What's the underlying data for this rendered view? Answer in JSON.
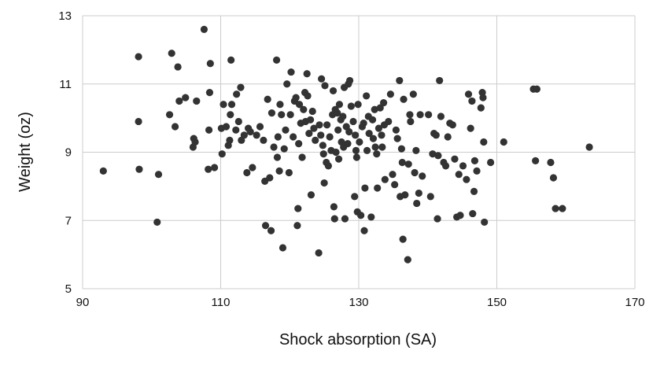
{
  "chart_data": {
    "type": "scatter",
    "xlabel": "Shock absorption (SA)",
    "ylabel": "Weight (oz)",
    "xlim": [
      90,
      170
    ],
    "ylim": [
      5,
      13
    ],
    "x_ticks": [
      90,
      110,
      130,
      150,
      170
    ],
    "y_ticks": [
      5,
      7,
      9,
      11,
      13
    ],
    "grid": true,
    "point_color": "#333333",
    "points": [
      [
        93,
        8.45
      ],
      [
        98.1,
        11.8
      ],
      [
        98.1,
        9.9
      ],
      [
        98.2,
        8.5
      ],
      [
        100.8,
        6.95
      ],
      [
        101,
        8.35
      ],
      [
        102.6,
        10.1
      ],
      [
        102.9,
        11.9
      ],
      [
        103.4,
        9.75
      ],
      [
        103.8,
        11.5
      ],
      [
        104,
        10.5
      ],
      [
        104.9,
        10.6
      ],
      [
        106,
        9.15
      ],
      [
        106.1,
        9.4
      ],
      [
        106.3,
        9.3
      ],
      [
        106.5,
        10.5
      ],
      [
        107.6,
        12.6
      ],
      [
        108.2,
        8.5
      ],
      [
        108.3,
        9.65
      ],
      [
        108.4,
        10.75
      ],
      [
        108.5,
        11.6
      ],
      [
        109.1,
        8.55
      ],
      [
        110.1,
        9.7
      ],
      [
        110.2,
        8.95
      ],
      [
        110.4,
        10.4
      ],
      [
        110.8,
        9.75
      ],
      [
        111.1,
        9.2
      ],
      [
        111.3,
        9.35
      ],
      [
        111.4,
        10.1
      ],
      [
        111.5,
        11.7
      ],
      [
        111.6,
        10.4
      ],
      [
        112.2,
        9.65
      ],
      [
        112.3,
        10.7
      ],
      [
        112.6,
        9.9
      ],
      [
        112.9,
        10.9
      ],
      [
        113,
        9.35
      ],
      [
        113.4,
        9.5
      ],
      [
        113.8,
        8.4
      ],
      [
        114,
        9.7
      ],
      [
        114.3,
        9.6
      ],
      [
        114.6,
        8.55
      ],
      [
        115.2,
        9.5
      ],
      [
        115.7,
        9.75
      ],
      [
        116.2,
        9.35
      ],
      [
        116.4,
        8.15
      ],
      [
        116.5,
        6.85
      ],
      [
        116.8,
        10.55
      ],
      [
        117.1,
        8.25
      ],
      [
        117.3,
        6.7
      ],
      [
        117.4,
        10.15
      ],
      [
        117.7,
        9.15
      ],
      [
        118.1,
        11.7
      ],
      [
        118.2,
        8.85
      ],
      [
        118.3,
        9.45
      ],
      [
        118.5,
        8.45
      ],
      [
        118.6,
        10.4
      ],
      [
        118.8,
        10.1
      ],
      [
        119,
        6.2
      ],
      [
        119.2,
        9.1
      ],
      [
        119.4,
        9.65
      ],
      [
        119.6,
        11
      ],
      [
        119.9,
        8.4
      ],
      [
        120.1,
        10.1
      ],
      [
        120.2,
        11.35
      ],
      [
        120.5,
        9.45
      ],
      [
        120.7,
        10.5
      ],
      [
        120.9,
        10.6
      ],
      [
        121.1,
        6.85
      ],
      [
        121.2,
        7.35
      ],
      [
        121.3,
        9.25
      ],
      [
        121.4,
        10.4
      ],
      [
        121.6,
        9.85
      ],
      [
        121.8,
        8.85
      ],
      [
        122,
        10.25
      ],
      [
        122.2,
        10.75
      ],
      [
        122.3,
        9.9
      ],
      [
        122.5,
        11.3
      ],
      [
        122.6,
        10.65
      ],
      [
        122.8,
        9.55
      ],
      [
        123,
        9.95
      ],
      [
        123.1,
        7.75
      ],
      [
        123.3,
        10.2
      ],
      [
        123.5,
        9.7
      ],
      [
        123.7,
        9.35
      ],
      [
        124.2,
        6.05
      ],
      [
        124.3,
        9.8
      ],
      [
        124.5,
        9.5
      ],
      [
        124.6,
        11.15
      ],
      [
        124.8,
        9.2
      ],
      [
        124.9,
        8.95
      ],
      [
        125,
        8.1
      ],
      [
        125.1,
        10.95
      ],
      [
        125.3,
        8.7
      ],
      [
        125.4,
        9.8
      ],
      [
        125.6,
        8.6
      ],
      [
        125.8,
        9.45
      ],
      [
        126,
        9.05
      ],
      [
        126.2,
        10.1
      ],
      [
        126.3,
        10.8
      ],
      [
        126.4,
        7.4
      ],
      [
        126.5,
        7.05
      ],
      [
        126.6,
        10.25
      ],
      [
        126.7,
        9
      ],
      [
        126.9,
        10.15
      ],
      [
        127,
        9.65
      ],
      [
        127.1,
        8.8
      ],
      [
        127.2,
        10.4
      ],
      [
        127.4,
        9.95
      ],
      [
        127.5,
        9.3
      ],
      [
        127.7,
        10.05
      ],
      [
        127.8,
        9.15
      ],
      [
        127.9,
        10.9
      ],
      [
        128,
        7.05
      ],
      [
        128.2,
        9.75
      ],
      [
        128.4,
        9.25
      ],
      [
        128.5,
        11
      ],
      [
        128.6,
        9.6
      ],
      [
        128.7,
        11.1
      ],
      [
        128.9,
        10.35
      ],
      [
        129.2,
        9.9
      ],
      [
        129.4,
        7.7
      ],
      [
        129.5,
        9.5
      ],
      [
        129.6,
        9.05
      ],
      [
        129.7,
        8.85
      ],
      [
        129.8,
        7.25
      ],
      [
        129.9,
        10.4
      ],
      [
        130.1,
        9.3
      ],
      [
        130.3,
        7.15
      ],
      [
        130.5,
        9.75
      ],
      [
        130.7,
        9.85
      ],
      [
        130.8,
        6.7
      ],
      [
        130.9,
        7.95
      ],
      [
        131.1,
        10.65
      ],
      [
        131.2,
        9.05
      ],
      [
        131.4,
        10.05
      ],
      [
        131.5,
        9.55
      ],
      [
        131.8,
        7.1
      ],
      [
        132,
        9.95
      ],
      [
        132.1,
        9.4
      ],
      [
        132.3,
        10.25
      ],
      [
        132.4,
        9.15
      ],
      [
        132.6,
        8.95
      ],
      [
        132.7,
        7.95
      ],
      [
        132.9,
        9.7
      ],
      [
        133.1,
        10.3
      ],
      [
        133.3,
        9.5
      ],
      [
        133.4,
        9.15
      ],
      [
        133.6,
        10.45
      ],
      [
        133.7,
        9.8
      ],
      [
        133.8,
        8.2
      ],
      [
        134.3,
        9.9
      ],
      [
        134.6,
        10.7
      ],
      [
        134.9,
        8.35
      ],
      [
        135.2,
        8.05
      ],
      [
        135.4,
        9.65
      ],
      [
        135.6,
        9.4
      ],
      [
        135.9,
        11.1
      ],
      [
        136,
        7.7
      ],
      [
        136.2,
        9.1
      ],
      [
        136.3,
        8.7
      ],
      [
        136.4,
        6.45
      ],
      [
        136.5,
        10.55
      ],
      [
        136.7,
        7.75
      ],
      [
        137.1,
        5.85
      ],
      [
        137.2,
        8.65
      ],
      [
        137.4,
        10.1
      ],
      [
        137.5,
        9.9
      ],
      [
        137.9,
        10.7
      ],
      [
        138.1,
        8.4
      ],
      [
        138.3,
        9.05
      ],
      [
        138.4,
        7.5
      ],
      [
        138.7,
        7.8
      ],
      [
        138.9,
        10.1
      ],
      [
        139.2,
        8.3
      ],
      [
        140.1,
        10.1
      ],
      [
        140.4,
        7.7
      ],
      [
        140.7,
        8.95
      ],
      [
        140.9,
        9.55
      ],
      [
        141.2,
        9.5
      ],
      [
        141.4,
        7.05
      ],
      [
        141.5,
        8.9
      ],
      [
        141.7,
        11.1
      ],
      [
        141.9,
        10.05
      ],
      [
        142.3,
        8.7
      ],
      [
        142.6,
        8.6
      ],
      [
        142.9,
        9.45
      ],
      [
        143.2,
        9.85
      ],
      [
        143.6,
        9.8
      ],
      [
        143.9,
        8.8
      ],
      [
        144.2,
        7.1
      ],
      [
        144.5,
        8.35
      ],
      [
        144.7,
        7.15
      ],
      [
        145.1,
        8.6
      ],
      [
        145.6,
        8.2
      ],
      [
        145.9,
        10.7
      ],
      [
        146.2,
        9.7
      ],
      [
        146.4,
        10.5
      ],
      [
        146.5,
        7.2
      ],
      [
        146.7,
        7.85
      ],
      [
        146.8,
        8.75
      ],
      [
        147.1,
        8.45
      ],
      [
        147.7,
        10.3
      ],
      [
        147.9,
        10.75
      ],
      [
        148,
        10.6
      ],
      [
        148.1,
        9.3
      ],
      [
        148.2,
        6.95
      ],
      [
        149.1,
        8.7
      ],
      [
        151,
        9.3
      ],
      [
        155.3,
        10.85
      ],
      [
        155.6,
        8.75
      ],
      [
        155.8,
        10.85
      ],
      [
        157.8,
        8.7
      ],
      [
        158.2,
        8.25
      ],
      [
        158.5,
        7.35
      ],
      [
        159.5,
        7.35
      ],
      [
        163.4,
        9.15
      ]
    ]
  }
}
